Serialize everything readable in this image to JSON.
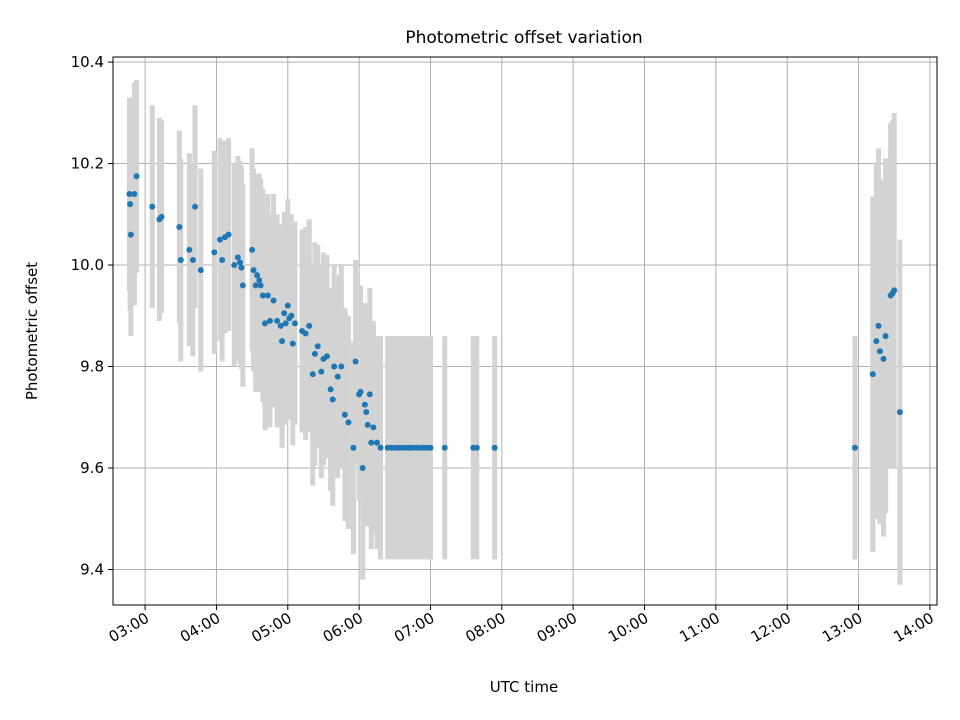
{
  "chart_data": {
    "type": "scatter",
    "title": "Photometric offset variation",
    "xlabel": "UTC time",
    "ylabel": "Photometric offset",
    "x_unit": "hours UTC",
    "xlim": [
      2.55,
      14.1
    ],
    "ylim": [
      9.33,
      10.41
    ],
    "grid": true,
    "x_ticks": [
      3,
      4,
      5,
      6,
      7,
      8,
      9,
      10,
      11,
      12,
      13,
      14
    ],
    "x_tick_labels": [
      "03:00",
      "04:00",
      "05:00",
      "06:00",
      "07:00",
      "08:00",
      "09:00",
      "10:00",
      "11:00",
      "12:00",
      "13:00",
      "14:00"
    ],
    "y_ticks": [
      9.4,
      9.6,
      9.8,
      10.0,
      10.2,
      10.4
    ],
    "y_tick_labels": [
      "9.4",
      "9.6",
      "9.8",
      "10.0",
      "10.2",
      "10.4"
    ],
    "colors": {
      "points": "#1f77b4",
      "error_bars": "#d3d3d3",
      "grid": "#b0b0b0"
    },
    "series": [
      {
        "x": [
          2.78,
          2.79,
          2.8,
          2.85,
          2.88,
          3.1,
          3.2,
          3.23,
          3.48,
          3.5,
          3.62,
          3.67,
          3.7,
          3.78,
          3.97,
          4.05,
          4.08,
          4.12,
          4.17,
          4.25,
          4.3,
          4.33,
          4.35,
          4.37,
          4.5,
          4.52,
          4.55,
          4.57,
          4.6,
          4.62,
          4.65,
          4.68,
          4.72,
          4.75,
          4.8,
          4.85,
          4.9,
          4.92,
          4.95,
          4.97,
          5.0,
          5.02,
          5.05,
          5.07,
          5.1,
          5.2,
          5.25,
          5.3,
          5.35,
          5.38,
          5.42,
          5.47,
          5.5,
          5.55,
          5.6,
          5.63,
          5.65,
          5.7,
          5.75,
          5.8,
          5.85,
          5.92,
          5.95,
          6.0,
          6.02,
          6.05,
          6.08,
          6.1,
          6.12,
          6.15,
          6.17,
          6.2,
          6.25,
          6.3,
          6.4,
          6.45,
          6.5,
          6.55,
          6.6,
          6.65,
          6.7,
          6.75,
          6.8,
          6.85,
          6.9,
          6.95,
          7.0,
          7.2,
          7.6,
          7.65,
          7.9,
          12.95,
          13.2,
          13.25,
          13.28,
          13.3,
          13.35,
          13.38,
          13.45,
          13.48,
          13.5,
          13.58
        ],
        "y": [
          10.14,
          10.12,
          10.06,
          10.14,
          10.175,
          10.115,
          10.09,
          10.095,
          10.075,
          10.01,
          10.03,
          10.01,
          10.115,
          9.99,
          10.025,
          10.05,
          10.01,
          10.055,
          10.06,
          10.0,
          10.015,
          10.005,
          9.995,
          9.96,
          10.03,
          9.99,
          9.96,
          9.98,
          9.97,
          9.96,
          9.94,
          9.885,
          9.94,
          9.89,
          9.93,
          9.89,
          9.88,
          9.85,
          9.905,
          9.885,
          9.92,
          9.895,
          9.9,
          9.845,
          9.885,
          9.87,
          9.865,
          9.88,
          9.785,
          9.825,
          9.84,
          9.79,
          9.815,
          9.82,
          9.755,
          9.735,
          9.8,
          9.78,
          9.8,
          9.705,
          9.69,
          9.64,
          9.81,
          9.745,
          9.75,
          9.6,
          9.725,
          9.71,
          9.685,
          9.745,
          9.65,
          9.68,
          9.65,
          9.64,
          9.64,
          9.64,
          9.64,
          9.64,
          9.64,
          9.64,
          9.64,
          9.64,
          9.64,
          9.64,
          9.64,
          9.64,
          9.64,
          9.64,
          9.64,
          9.64,
          9.64,
          9.64,
          9.785,
          9.85,
          9.88,
          9.83,
          9.815,
          9.86,
          9.94,
          9.945,
          9.95,
          9.71
        ],
        "err": [
          0.19,
          0.21,
          0.2,
          0.22,
          0.19,
          0.2,
          0.2,
          0.19,
          0.19,
          0.2,
          0.19,
          0.19,
          0.2,
          0.2,
          0.2,
          0.2,
          0.2,
          0.19,
          0.19,
          0.2,
          0.2,
          0.2,
          0.2,
          0.2,
          0.2,
          0.2,
          0.21,
          0.2,
          0.21,
          0.21,
          0.21,
          0.21,
          0.2,
          0.21,
          0.21,
          0.21,
          0.2,
          0.21,
          0.2,
          0.2,
          0.21,
          0.2,
          0.2,
          0.2,
          0.2,
          0.2,
          0.21,
          0.21,
          0.22,
          0.22,
          0.2,
          0.21,
          0.21,
          0.2,
          0.2,
          0.21,
          0.2,
          0.2,
          0.2,
          0.21,
          0.21,
          0.21,
          0.2,
          0.21,
          0.21,
          0.22,
          0.2,
          0.21,
          0.2,
          0.21,
          0.21,
          0.21,
          0.21,
          0.22,
          0.22,
          0.22,
          0.22,
          0.22,
          0.22,
          0.22,
          0.22,
          0.22,
          0.22,
          0.22,
          0.22,
          0.22,
          0.22,
          0.22,
          0.22,
          0.22,
          0.22,
          0.22,
          0.35,
          0.35,
          0.35,
          0.34,
          0.35,
          0.35,
          0.34,
          0.34,
          0.35,
          0.34
        ]
      }
    ]
  }
}
